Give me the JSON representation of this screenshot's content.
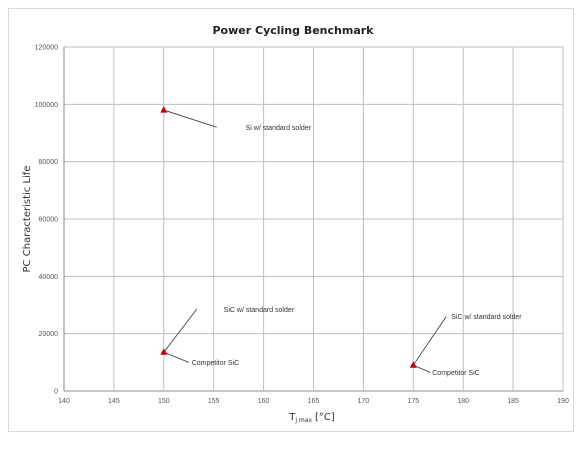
{
  "chart_data": {
    "type": "scatter",
    "title": "Power Cycling Benchmark",
    "ylabel": "PC Characteristic Life",
    "xlabel": {
      "main": "T",
      "subscript": "j max",
      "unit": "[°C]"
    },
    "xlim": [
      140,
      190
    ],
    "ylim": [
      0,
      120000
    ],
    "xticks": [
      140,
      145,
      150,
      155,
      160,
      165,
      170,
      175,
      180,
      185,
      190
    ],
    "yticks": [
      0,
      20000,
      40000,
      60000,
      80000,
      100000,
      120000
    ],
    "grid": true,
    "legend": "none",
    "marker": "triangle",
    "marker_color": "#c00000",
    "points": [
      {
        "x": 150,
        "y": 98000
      },
      {
        "x": 150,
        "y": 13500
      },
      {
        "x": 175,
        "y": 9000
      }
    ],
    "annotations": [
      {
        "text": "Si w/ standard solder",
        "point_x": 150,
        "point_y": 98000,
        "line_end_x": 155.3,
        "line_end_y": 92000,
        "text_x": 158.2,
        "text_y": 92000
      },
      {
        "text": "SiC w/ standard solder",
        "point_x": 150,
        "point_y": 13500,
        "line_end_x": 153.3,
        "line_end_y": 28500,
        "text_x": 156.0,
        "text_y": 28500
      },
      {
        "text": "Competitor SiC",
        "point_x": 150,
        "point_y": 13500,
        "line_end_x": 152.5,
        "line_end_y": 10000,
        "text_x": 152.8,
        "text_y": 10000
      },
      {
        "text": "SiC w/ standard solder",
        "point_x": 175,
        "point_y": 9000,
        "line_end_x": 178.3,
        "line_end_y": 26000,
        "text_x": 178.8,
        "text_y": 26000
      },
      {
        "text": "Competitor SiC",
        "point_x": 175,
        "point_y": 9000,
        "line_end_x": 176.7,
        "line_end_y": 6500,
        "text_x": 176.9,
        "text_y": 6500
      }
    ]
  }
}
